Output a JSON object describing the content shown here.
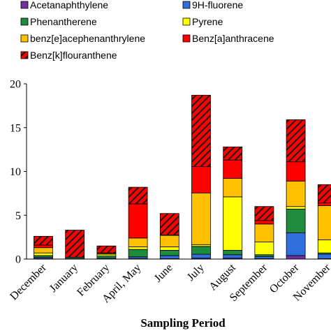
{
  "chart_data": {
    "type": "bar",
    "stacked": true,
    "title": "",
    "xlabel": "Sampling Period",
    "ylabel": "",
    "ylim": [
      0,
      20
    ],
    "yticks": [
      0,
      5,
      10,
      15,
      20
    ],
    "grid": false,
    "legend_position": "top",
    "categories": [
      "December",
      "January",
      "February",
      "April, May",
      "June",
      "July",
      "August",
      "September",
      "October",
      "November"
    ],
    "series": [
      {
        "name": "Acetanaphthylene",
        "color": "#7030a0",
        "pattern": "solid",
        "values": [
          0.05,
          0.0,
          0.0,
          0.05,
          0.05,
          0.1,
          0.1,
          0.05,
          0.4,
          0.05
        ]
      },
      {
        "name": "9H-fluorene",
        "color": "#2f6edb",
        "pattern": "solid",
        "values": [
          0.15,
          0.05,
          0.1,
          0.2,
          0.35,
          0.45,
          0.4,
          0.25,
          2.6,
          0.5
        ]
      },
      {
        "name": "Phenantherene",
        "color": "#1e8c3c",
        "pattern": "solid",
        "values": [
          0.2,
          0.15,
          0.25,
          0.85,
          0.6,
          0.9,
          0.5,
          0.2,
          2.7,
          0.15
        ]
      },
      {
        "name": "Pyrene",
        "color": "#ffff00",
        "pattern": "solid",
        "values": [
          0.3,
          0.0,
          0.2,
          0.3,
          0.4,
          0.2,
          6.1,
          1.45,
          0.3,
          1.5
        ]
      },
      {
        "name": "benz[e]acephenanthrylene",
        "color": "#ffc000",
        "pattern": "solid",
        "values": [
          0.6,
          0.0,
          0.1,
          1.0,
          1.3,
          5.9,
          2.1,
          2.05,
          2.9,
          3.9
        ]
      },
      {
        "name": "Benz[a]anthracene",
        "color": "#ff0000",
        "pattern": "solid",
        "values": [
          0.3,
          0.0,
          0.05,
          3.9,
          0.05,
          3.0,
          2.1,
          0.4,
          2.2,
          0.3
        ]
      },
      {
        "name": "Benz[k]flouranthene",
        "color": "#ff0000",
        "pattern": "hatch",
        "values": [
          1.0,
          3.1,
          0.8,
          1.9,
          2.45,
          8.15,
          1.5,
          1.6,
          4.8,
          2.1
        ]
      }
    ]
  },
  "colors": {
    "hatch_line": "#1a1a1a",
    "axis": "#000000"
  }
}
